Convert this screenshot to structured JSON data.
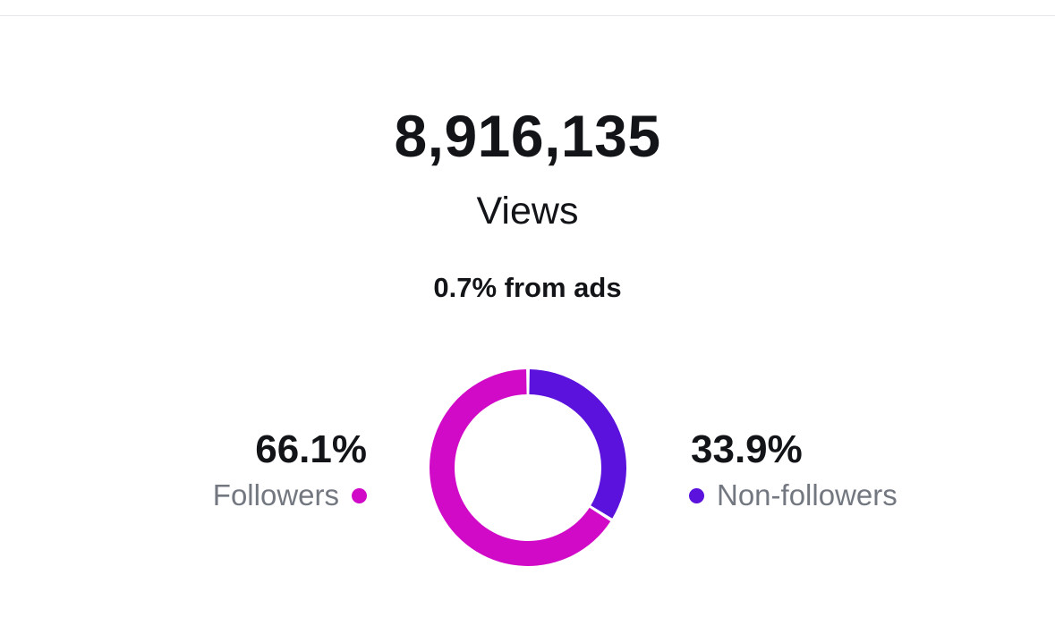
{
  "summary": {
    "total_views": "8,916,135",
    "label": "Views",
    "ads_note": "0.7% from ads"
  },
  "breakdown": {
    "followers": {
      "percent_label": "66.1%",
      "label": "Followers",
      "value": 66.1,
      "color": "#d10ac8"
    },
    "non_followers": {
      "percent_label": "33.9%",
      "label": "Non-followers",
      "value": 33.9,
      "color": "#5b12dc"
    }
  },
  "chart_data": {
    "type": "pie",
    "categories": [
      "Followers",
      "Non-followers"
    ],
    "values": [
      66.1,
      33.9
    ],
    "colors": [
      "#d10ac8",
      "#5b12dc"
    ],
    "title": "",
    "legend": "left-right"
  }
}
